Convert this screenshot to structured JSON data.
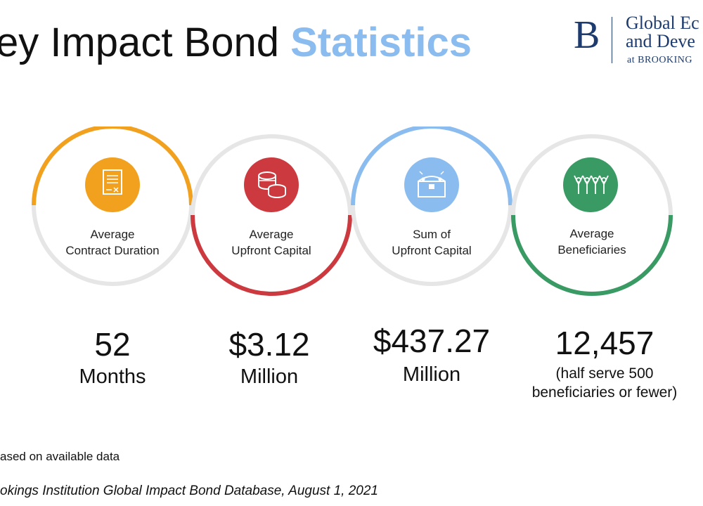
{
  "header": {
    "title_main": "ey Impact Bond ",
    "title_accent": "Statistics"
  },
  "logo": {
    "letter": "B",
    "line1": "Global Ec",
    "line2": "and Deve",
    "line3": "at BROOKING"
  },
  "stats": [
    {
      "label_1": "Average",
      "label_2": "Contract Duration",
      "value": "52",
      "unit": "Months",
      "color": "#f2a11f",
      "icon": "contract-document-icon"
    },
    {
      "label_1": "Average",
      "label_2": "Upfront Capital",
      "value": "$3.12",
      "unit": "Million",
      "color": "#cc3a3f",
      "icon": "coin-stack-icon"
    },
    {
      "label_1": "Sum of",
      "label_2": "Upfront Capital",
      "value": "$437.27",
      "unit": "Million",
      "color": "#8bbcf0",
      "icon": "treasure-chest-icon"
    },
    {
      "label_1": "Average",
      "label_2": "Beneficiaries",
      "value": "12,457",
      "note_1": "(half serve 500",
      "note_2": "beneficiaries or fewer)",
      "color": "#3a9a64",
      "icon": "people-cheering-icon"
    }
  ],
  "footnote": "ased on available data",
  "source": "okings Institution Global Impact Bond Database, August 1, 2021"
}
